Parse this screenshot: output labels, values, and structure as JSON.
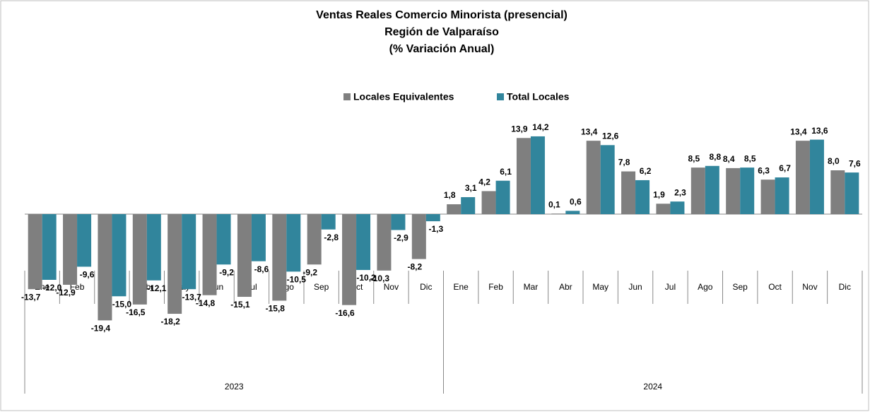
{
  "chart_data": {
    "type": "bar",
    "title_lines": [
      "Ventas Reales Comercio Minorista (presencial)",
      "Región de Valparaíso",
      "(% Variación Anual)"
    ],
    "category_groups": [
      {
        "label": "2023",
        "categories": [
          "Ene",
          "Feb",
          "Mar",
          "Abr",
          "May",
          "Jun",
          "Jul",
          "Ago",
          "Sep",
          "Oct",
          "Nov",
          "Dic"
        ]
      },
      {
        "label": "2024",
        "categories": [
          "Ene",
          "Feb",
          "Mar",
          "Abr",
          "May",
          "Jun",
          "Jul",
          "Ago",
          "Sep",
          "Oct",
          "Nov",
          "Dic"
        ]
      }
    ],
    "series": [
      {
        "name": "Locales Equivalentes",
        "color": "#7f7f7f",
        "values": [
          -13.7,
          -12.9,
          -19.4,
          -16.5,
          -18.2,
          -14.8,
          -15.1,
          -15.8,
          -9.2,
          -16.6,
          -10.3,
          -8.2,
          1.8,
          4.2,
          13.9,
          0.1,
          13.4,
          7.8,
          1.9,
          8.5,
          8.4,
          6.3,
          13.4,
          8.0
        ],
        "value_labels": [
          "-13,7",
          "-12,9",
          "-19,4",
          "-16,5",
          "-18,2",
          "-14,8",
          "-15,1",
          "-15,8",
          "-9,2",
          "-16,6",
          "-10,3",
          "-8,2",
          "1,8",
          "4,2",
          "13,9",
          "0,1",
          "13,4",
          "7,8",
          "1,9",
          "8,5",
          "8,4",
          "6,3",
          "13,4",
          "8,0"
        ]
      },
      {
        "name": "Total Locales",
        "color": "#31859c",
        "values": [
          -12.0,
          -9.6,
          -15.0,
          -12.1,
          -13.7,
          -9.2,
          -8.6,
          -10.5,
          -2.8,
          -10.2,
          -2.9,
          -1.3,
          3.1,
          6.1,
          14.2,
          0.6,
          12.6,
          6.2,
          2.3,
          8.8,
          8.5,
          6.7,
          13.6,
          7.6
        ],
        "value_labels": [
          "-12,0",
          "-9,6",
          "-15,0",
          "-12,1",
          "-13,7",
          "-9,2",
          "-8,6",
          "-10,5",
          "-2,8",
          "-10,2",
          "-2,9",
          "-1,3",
          "3,1",
          "6,1",
          "14,2",
          "0,6",
          "12,6",
          "6,2",
          "2,3",
          "8,8",
          "8,5",
          "6,7",
          "13,6",
          "7,6"
        ]
      }
    ]
  }
}
